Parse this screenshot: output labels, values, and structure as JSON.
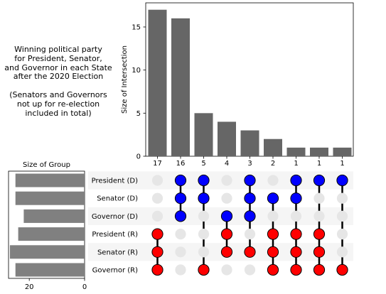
{
  "title_lines": {
    "main": "Winning political party\nfor President, Senator,\nand Governor in each State\nafter the 2020 Election",
    "note": "(Senators and Governors\nnot up for re-election\nincluded in total)"
  },
  "chart_data": {
    "type": "upset",
    "intersections": {
      "type": "bar",
      "values": [
        17,
        16,
        5,
        4,
        3,
        2,
        1,
        1,
        1
      ],
      "bar_labels": [
        "17",
        "16",
        "5",
        "4",
        "3",
        "2",
        "1",
        "1",
        "1"
      ],
      "ylabel": "Size of Intersection",
      "ylim": [
        0,
        17.8
      ],
      "yticks": [
        0,
        5,
        10,
        15
      ],
      "ytick_labels": [
        "0",
        "5",
        "10",
        "15"
      ],
      "bar_color": "#666666"
    },
    "set_sizes": {
      "type": "bar",
      "orientation": "horizontal",
      "title": "Size of Group",
      "sets": [
        "President (D)",
        "Senator (D)",
        "Governor (D)",
        "President (R)",
        "Senator (R)",
        "Governor (R)"
      ],
      "values": [
        25,
        25,
        22,
        24,
        27,
        25
      ],
      "xticks": [
        20,
        0
      ],
      "xtick_labels": [
        "20",
        "0"
      ],
      "xlim": [
        0,
        27.5
      ],
      "bar_color": "#808080"
    },
    "matrix": {
      "rows": [
        "President (D)",
        "Senator (D)",
        "Governor (D)",
        "President (R)",
        "Senator (R)",
        "Governor (R)"
      ],
      "membership": [
        [
          3,
          4,
          5
        ],
        [
          0,
          1,
          2
        ],
        [
          0,
          1,
          5
        ],
        [
          2,
          3,
          4
        ],
        [
          0,
          1,
          2,
          4
        ],
        [
          1,
          3,
          4,
          5
        ],
        [
          0,
          1,
          3,
          4,
          5
        ],
        [
          0,
          3,
          4,
          5
        ],
        [
          0,
          5
        ]
      ],
      "colors": {
        "President (D)": "#0000ff",
        "Senator (D)": "#0000ff",
        "Governor (D)": "#0000ff",
        "President (R)": "#ff0000",
        "Senator (R)": "#ff0000",
        "Governor (R)": "#ff0000",
        "inactive": "#e6e6e6",
        "stripe": "#f5f5f5",
        "line": "#000000"
      }
    }
  }
}
